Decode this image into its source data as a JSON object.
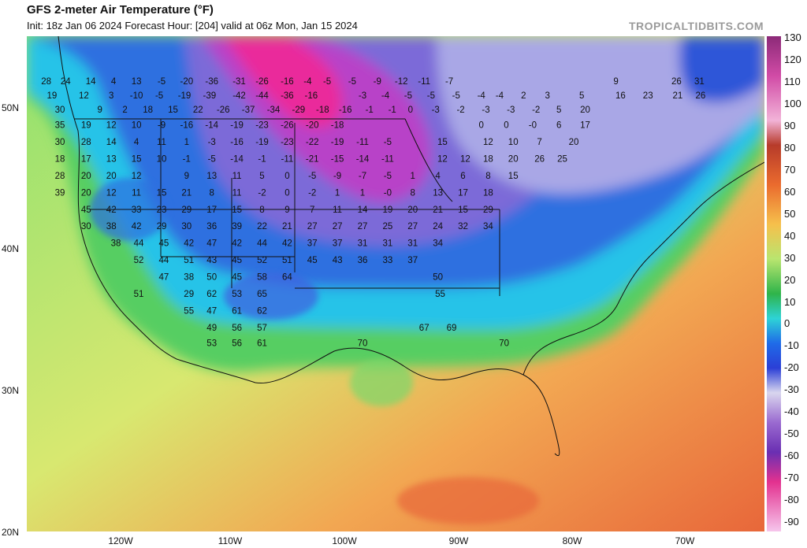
{
  "header": {
    "title": "GFS 2-meter Air Temperature (°F)",
    "subtitle": "Init: 18z Jan 06 2024   Forecast Hour: [204]   valid at 06z Mon, Jan 15 2024",
    "brand": "TROPICALTIDBITS.COM"
  },
  "axes": {
    "lat_labels": [
      "50N",
      "40N",
      "30N",
      "20N"
    ],
    "lon_labels": [
      "120W",
      "110W",
      "100W",
      "90W",
      "80W",
      "70W"
    ]
  },
  "colorbar": {
    "ticks": [
      "130",
      "120",
      "110",
      "100",
      "90",
      "80",
      "70",
      "60",
      "50",
      "40",
      "30",
      "20",
      "10",
      "0",
      "-10",
      "-20",
      "-30",
      "-40",
      "-50",
      "-60",
      "-70",
      "-80",
      "-90"
    ]
  },
  "temps": [
    {
      "v": "28",
      "lon": -126.5,
      "lat": 52.0
    },
    {
      "v": "24",
      "lon": -124.8,
      "lat": 52.0
    },
    {
      "v": "14",
      "lon": -122.6,
      "lat": 52.0
    },
    {
      "v": "4",
      "lon": -120.6,
      "lat": 52.0
    },
    {
      "v": "13",
      "lon": -118.6,
      "lat": 52.0
    },
    {
      "v": "-5",
      "lon": -116.4,
      "lat": 52.0
    },
    {
      "v": "-20",
      "lon": -114.2,
      "lat": 52.0
    },
    {
      "v": "-36",
      "lon": -112.0,
      "lat": 52.0
    },
    {
      "v": "-31",
      "lon": -109.6,
      "lat": 52.0
    },
    {
      "v": "-26",
      "lon": -107.6,
      "lat": 52.0
    },
    {
      "v": "-16",
      "lon": -105.4,
      "lat": 52.0
    },
    {
      "v": "-4",
      "lon": -103.6,
      "lat": 52.0
    },
    {
      "v": "-5",
      "lon": -101.9,
      "lat": 52.0
    },
    {
      "v": "-5",
      "lon": -99.7,
      "lat": 52.0
    },
    {
      "v": "-9",
      "lon": -97.5,
      "lat": 52.0
    },
    {
      "v": "-12",
      "lon": -95.4,
      "lat": 52.0
    },
    {
      "v": "-11",
      "lon": -93.4,
      "lat": 52.0
    },
    {
      "v": "-7",
      "lon": -91.2,
      "lat": 52.0
    },
    {
      "v": "9",
      "lon": -76.6,
      "lat": 52.0
    },
    {
      "v": "26",
      "lon": -71.3,
      "lat": 52.0
    },
    {
      "v": "31",
      "lon": -69.3,
      "lat": 52.0
    },
    {
      "v": "19",
      "lon": -126.0,
      "lat": 51.0
    },
    {
      "v": "12",
      "lon": -123.2,
      "lat": 51.0
    },
    {
      "v": "3",
      "lon": -120.8,
      "lat": 51.0
    },
    {
      "v": "-10",
      "lon": -118.6,
      "lat": 51.0
    },
    {
      "v": "-5",
      "lon": -116.6,
      "lat": 51.0
    },
    {
      "v": "-19",
      "lon": -114.4,
      "lat": 51.0
    },
    {
      "v": "-39",
      "lon": -112.2,
      "lat": 51.0
    },
    {
      "v": "-42",
      "lon": -109.6,
      "lat": 51.0
    },
    {
      "v": "-44",
      "lon": -107.6,
      "lat": 51.0
    },
    {
      "v": "-36",
      "lon": -105.4,
      "lat": 51.0
    },
    {
      "v": "-16",
      "lon": -103.3,
      "lat": 51.0
    },
    {
      "v": "-3",
      "lon": -98.8,
      "lat": 51.0
    },
    {
      "v": "-4",
      "lon": -96.8,
      "lat": 51.0
    },
    {
      "v": "-5",
      "lon": -94.8,
      "lat": 51.0
    },
    {
      "v": "-5",
      "lon": -92.8,
      "lat": 51.0
    },
    {
      "v": "-5",
      "lon": -90.6,
      "lat": 51.0
    },
    {
      "v": "-4",
      "lon": -88.4,
      "lat": 51.0
    },
    {
      "v": "-4",
      "lon": -86.8,
      "lat": 51.0
    },
    {
      "v": "2",
      "lon": -84.7,
      "lat": 51.0
    },
    {
      "v": "3",
      "lon": -82.6,
      "lat": 51.0
    },
    {
      "v": "5",
      "lon": -79.6,
      "lat": 51.0
    },
    {
      "v": "16",
      "lon": -76.2,
      "lat": 51.0
    },
    {
      "v": "23",
      "lon": -73.8,
      "lat": 51.0
    },
    {
      "v": "21",
      "lon": -71.2,
      "lat": 51.0
    },
    {
      "v": "26",
      "lon": -69.2,
      "lat": 51.0
    },
    {
      "v": "30",
      "lon": -125.3,
      "lat": 50.0
    },
    {
      "v": "9",
      "lon": -121.8,
      "lat": 50.0
    },
    {
      "v": "2",
      "lon": -119.6,
      "lat": 50.0
    },
    {
      "v": "18",
      "lon": -117.6,
      "lat": 50.0
    },
    {
      "v": "15",
      "lon": -115.4,
      "lat": 50.0
    },
    {
      "v": "22",
      "lon": -113.2,
      "lat": 50.0
    },
    {
      "v": "-26",
      "lon": -111.0,
      "lat": 50.0
    },
    {
      "v": "-37",
      "lon": -108.8,
      "lat": 50.0
    },
    {
      "v": "-34",
      "lon": -106.6,
      "lat": 50.0
    },
    {
      "v": "-29",
      "lon": -104.4,
      "lat": 50.0
    },
    {
      "v": "-18",
      "lon": -102.3,
      "lat": 50.0
    },
    {
      "v": "-16",
      "lon": -100.3,
      "lat": 50.0
    },
    {
      "v": "-1",
      "lon": -98.2,
      "lat": 50.0
    },
    {
      "v": "-1",
      "lon": -96.2,
      "lat": 50.0
    },
    {
      "v": "0",
      "lon": -94.6,
      "lat": 50.0
    },
    {
      "v": "-3",
      "lon": -92.4,
      "lat": 50.0
    },
    {
      "v": "-2",
      "lon": -90.2,
      "lat": 50.0
    },
    {
      "v": "-3",
      "lon": -88.0,
      "lat": 50.0
    },
    {
      "v": "-3",
      "lon": -85.8,
      "lat": 50.0
    },
    {
      "v": "-2",
      "lon": -83.6,
      "lat": 50.0
    },
    {
      "v": "5",
      "lon": -81.6,
      "lat": 50.0
    },
    {
      "v": "20",
      "lon": -79.3,
      "lat": 50.0
    },
    {
      "v": "35",
      "lon": -125.3,
      "lat": 48.9
    },
    {
      "v": "19",
      "lon": -123.0,
      "lat": 48.9
    },
    {
      "v": "12",
      "lon": -120.8,
      "lat": 48.9
    },
    {
      "v": "10",
      "lon": -118.6,
      "lat": 48.9
    },
    {
      "v": "-9",
      "lon": -116.4,
      "lat": 48.9
    },
    {
      "v": "-16",
      "lon": -114.2,
      "lat": 48.9
    },
    {
      "v": "-14",
      "lon": -112.0,
      "lat": 48.9
    },
    {
      "v": "-19",
      "lon": -109.8,
      "lat": 48.9
    },
    {
      "v": "-23",
      "lon": -107.6,
      "lat": 48.9
    },
    {
      "v": "-26",
      "lon": -105.4,
      "lat": 48.9
    },
    {
      "v": "-20",
      "lon": -103.2,
      "lat": 48.9
    },
    {
      "v": "-18",
      "lon": -101.0,
      "lat": 48.9
    },
    {
      "v": "0",
      "lon": -88.4,
      "lat": 48.9
    },
    {
      "v": "0",
      "lon": -86.2,
      "lat": 48.9
    },
    {
      "v": "-0",
      "lon": -83.9,
      "lat": 48.9
    },
    {
      "v": "6",
      "lon": -81.6,
      "lat": 48.9
    },
    {
      "v": "17",
      "lon": -79.3,
      "lat": 48.9
    },
    {
      "v": "30",
      "lon": -125.3,
      "lat": 47.7
    },
    {
      "v": "28",
      "lon": -123.0,
      "lat": 47.7
    },
    {
      "v": "14",
      "lon": -120.8,
      "lat": 47.7
    },
    {
      "v": "4",
      "lon": -118.6,
      "lat": 47.7
    },
    {
      "v": "11",
      "lon": -116.4,
      "lat": 47.7
    },
    {
      "v": "1",
      "lon": -114.2,
      "lat": 47.7
    },
    {
      "v": "-3",
      "lon": -112.0,
      "lat": 47.7
    },
    {
      "v": "-16",
      "lon": -109.8,
      "lat": 47.7
    },
    {
      "v": "-19",
      "lon": -107.6,
      "lat": 47.7
    },
    {
      "v": "-23",
      "lon": -105.4,
      "lat": 47.7
    },
    {
      "v": "-22",
      "lon": -103.2,
      "lat": 47.7
    },
    {
      "v": "-19",
      "lon": -101.0,
      "lat": 47.7
    },
    {
      "v": "-11",
      "lon": -98.8,
      "lat": 47.7
    },
    {
      "v": "-5",
      "lon": -96.6,
      "lat": 47.7
    },
    {
      "v": "15",
      "lon": -91.8,
      "lat": 47.7
    },
    {
      "v": "12",
      "lon": -87.8,
      "lat": 47.7
    },
    {
      "v": "10",
      "lon": -85.6,
      "lat": 47.7
    },
    {
      "v": "7",
      "lon": -83.3,
      "lat": 47.7
    },
    {
      "v": "20",
      "lon": -80.3,
      "lat": 47.7
    },
    {
      "v": "18",
      "lon": -125.3,
      "lat": 46.5
    },
    {
      "v": "17",
      "lon": -123.0,
      "lat": 46.5
    },
    {
      "v": "13",
      "lon": -120.8,
      "lat": 46.5
    },
    {
      "v": "15",
      "lon": -118.6,
      "lat": 46.5
    },
    {
      "v": "10",
      "lon": -116.4,
      "lat": 46.5
    },
    {
      "v": "-1",
      "lon": -114.2,
      "lat": 46.5
    },
    {
      "v": "-5",
      "lon": -112.0,
      "lat": 46.5
    },
    {
      "v": "-14",
      "lon": -109.8,
      "lat": 46.5
    },
    {
      "v": "-1",
      "lon": -107.6,
      "lat": 46.5
    },
    {
      "v": "-11",
      "lon": -105.4,
      "lat": 46.5
    },
    {
      "v": "-21",
      "lon": -103.2,
      "lat": 46.5
    },
    {
      "v": "-15",
      "lon": -101.0,
      "lat": 46.5
    },
    {
      "v": "-14",
      "lon": -98.8,
      "lat": 46.5
    },
    {
      "v": "-11",
      "lon": -96.6,
      "lat": 46.5
    },
    {
      "v": "12",
      "lon": -91.8,
      "lat": 46.5
    },
    {
      "v": "12",
      "lon": -89.8,
      "lat": 46.5
    },
    {
      "v": "18",
      "lon": -87.8,
      "lat": 46.5
    },
    {
      "v": "20",
      "lon": -85.6,
      "lat": 46.5
    },
    {
      "v": "26",
      "lon": -83.3,
      "lat": 46.5
    },
    {
      "v": "25",
      "lon": -81.3,
      "lat": 46.5
    },
    {
      "v": "28",
      "lon": -125.3,
      "lat": 45.3
    },
    {
      "v": "20",
      "lon": -123.0,
      "lat": 45.3
    },
    {
      "v": "20",
      "lon": -120.8,
      "lat": 45.3
    },
    {
      "v": "12",
      "lon": -118.6,
      "lat": 45.3
    },
    {
      "v": "9",
      "lon": -114.2,
      "lat": 45.3
    },
    {
      "v": "13",
      "lon": -112.0,
      "lat": 45.3
    },
    {
      "v": "11",
      "lon": -109.8,
      "lat": 45.3
    },
    {
      "v": "5",
      "lon": -107.6,
      "lat": 45.3
    },
    {
      "v": "0",
      "lon": -105.4,
      "lat": 45.3
    },
    {
      "v": "-5",
      "lon": -103.2,
      "lat": 45.3
    },
    {
      "v": "-9",
      "lon": -101.0,
      "lat": 45.3
    },
    {
      "v": "-7",
      "lon": -98.8,
      "lat": 45.3
    },
    {
      "v": "-5",
      "lon": -96.6,
      "lat": 45.3
    },
    {
      "v": "1",
      "lon": -94.4,
      "lat": 45.3
    },
    {
      "v": "4",
      "lon": -92.2,
      "lat": 45.3
    },
    {
      "v": "6",
      "lon": -90.0,
      "lat": 45.3
    },
    {
      "v": "8",
      "lon": -87.8,
      "lat": 45.3
    },
    {
      "v": "15",
      "lon": -85.6,
      "lat": 45.3
    },
    {
      "v": "39",
      "lon": -125.3,
      "lat": 44.1
    },
    {
      "v": "20",
      "lon": -123.0,
      "lat": 44.1
    },
    {
      "v": "12",
      "lon": -120.8,
      "lat": 44.1
    },
    {
      "v": "11",
      "lon": -118.6,
      "lat": 44.1
    },
    {
      "v": "15",
      "lon": -116.4,
      "lat": 44.1
    },
    {
      "v": "21",
      "lon": -114.2,
      "lat": 44.1
    },
    {
      "v": "8",
      "lon": -112.0,
      "lat": 44.1
    },
    {
      "v": "11",
      "lon": -109.8,
      "lat": 44.1
    },
    {
      "v": "-2",
      "lon": -107.6,
      "lat": 44.1
    },
    {
      "v": "0",
      "lon": -105.4,
      "lat": 44.1
    },
    {
      "v": "-2",
      "lon": -103.2,
      "lat": 44.1
    },
    {
      "v": "1",
      "lon": -101.0,
      "lat": 44.1
    },
    {
      "v": "1",
      "lon": -98.8,
      "lat": 44.1
    },
    {
      "v": "-0",
      "lon": -96.6,
      "lat": 44.1
    },
    {
      "v": "8",
      "lon": -94.4,
      "lat": 44.1
    },
    {
      "v": "13",
      "lon": -92.2,
      "lat": 44.1
    },
    {
      "v": "17",
      "lon": -90.0,
      "lat": 44.1
    },
    {
      "v": "18",
      "lon": -87.8,
      "lat": 44.1
    },
    {
      "v": "45",
      "lon": -123.0,
      "lat": 42.9
    },
    {
      "v": "42",
      "lon": -120.8,
      "lat": 42.9
    },
    {
      "v": "33",
      "lon": -118.6,
      "lat": 42.9
    },
    {
      "v": "23",
      "lon": -116.4,
      "lat": 42.9
    },
    {
      "v": "29",
      "lon": -114.2,
      "lat": 42.9
    },
    {
      "v": "17",
      "lon": -112.0,
      "lat": 42.9
    },
    {
      "v": "15",
      "lon": -109.8,
      "lat": 42.9
    },
    {
      "v": "8",
      "lon": -107.6,
      "lat": 42.9
    },
    {
      "v": "9",
      "lon": -105.4,
      "lat": 42.9
    },
    {
      "v": "7",
      "lon": -103.2,
      "lat": 42.9
    },
    {
      "v": "11",
      "lon": -101.0,
      "lat": 42.9
    },
    {
      "v": "14",
      "lon": -98.8,
      "lat": 42.9
    },
    {
      "v": "19",
      "lon": -96.6,
      "lat": 42.9
    },
    {
      "v": "20",
      "lon": -94.4,
      "lat": 42.9
    },
    {
      "v": "21",
      "lon": -92.2,
      "lat": 42.9
    },
    {
      "v": "15",
      "lon": -90.0,
      "lat": 42.9
    },
    {
      "v": "29",
      "lon": -87.8,
      "lat": 42.9
    },
    {
      "v": "30",
      "lon": -123.0,
      "lat": 41.7
    },
    {
      "v": "38",
      "lon": -120.8,
      "lat": 41.7
    },
    {
      "v": "42",
      "lon": -118.6,
      "lat": 41.7
    },
    {
      "v": "29",
      "lon": -116.4,
      "lat": 41.7
    },
    {
      "v": "30",
      "lon": -114.2,
      "lat": 41.7
    },
    {
      "v": "36",
      "lon": -112.0,
      "lat": 41.7
    },
    {
      "v": "39",
      "lon": -109.8,
      "lat": 41.7
    },
    {
      "v": "22",
      "lon": -107.6,
      "lat": 41.7
    },
    {
      "v": "21",
      "lon": -105.4,
      "lat": 41.7
    },
    {
      "v": "27",
      "lon": -103.2,
      "lat": 41.7
    },
    {
      "v": "27",
      "lon": -101.0,
      "lat": 41.7
    },
    {
      "v": "27",
      "lon": -98.8,
      "lat": 41.7
    },
    {
      "v": "25",
      "lon": -96.6,
      "lat": 41.7
    },
    {
      "v": "27",
      "lon": -94.4,
      "lat": 41.7
    },
    {
      "v": "24",
      "lon": -92.2,
      "lat": 41.7
    },
    {
      "v": "32",
      "lon": -90.0,
      "lat": 41.7
    },
    {
      "v": "34",
      "lon": -87.8,
      "lat": 41.7
    },
    {
      "v": "38",
      "lon": -120.4,
      "lat": 40.5
    },
    {
      "v": "44",
      "lon": -118.4,
      "lat": 40.5
    },
    {
      "v": "45",
      "lon": -116.2,
      "lat": 40.5
    },
    {
      "v": "42",
      "lon": -114.0,
      "lat": 40.5
    },
    {
      "v": "47",
      "lon": -112.0,
      "lat": 40.5
    },
    {
      "v": "42",
      "lon": -109.8,
      "lat": 40.5
    },
    {
      "v": "44",
      "lon": -107.6,
      "lat": 40.5
    },
    {
      "v": "42",
      "lon": -105.4,
      "lat": 40.5
    },
    {
      "v": "37",
      "lon": -103.2,
      "lat": 40.5
    },
    {
      "v": "37",
      "lon": -101.0,
      "lat": 40.5
    },
    {
      "v": "31",
      "lon": -98.8,
      "lat": 40.5
    },
    {
      "v": "31",
      "lon": -96.6,
      "lat": 40.5
    },
    {
      "v": "31",
      "lon": -94.4,
      "lat": 40.5
    },
    {
      "v": "34",
      "lon": -92.2,
      "lat": 40.5
    },
    {
      "v": "52",
      "lon": -118.4,
      "lat": 39.3
    },
    {
      "v": "44",
      "lon": -116.2,
      "lat": 39.3
    },
    {
      "v": "51",
      "lon": -114.0,
      "lat": 39.3
    },
    {
      "v": "43",
      "lon": -112.0,
      "lat": 39.3
    },
    {
      "v": "45",
      "lon": -109.8,
      "lat": 39.3
    },
    {
      "v": "52",
      "lon": -107.6,
      "lat": 39.3
    },
    {
      "v": "51",
      "lon": -105.4,
      "lat": 39.3
    },
    {
      "v": "45",
      "lon": -103.2,
      "lat": 39.3
    },
    {
      "v": "43",
      "lon": -101.0,
      "lat": 39.3
    },
    {
      "v": "36",
      "lon": -98.8,
      "lat": 39.3
    },
    {
      "v": "33",
      "lon": -96.6,
      "lat": 39.3
    },
    {
      "v": "37",
      "lon": -94.4,
      "lat": 39.3
    },
    {
      "v": "47",
      "lon": -116.2,
      "lat": 38.1
    },
    {
      "v": "38",
      "lon": -114.0,
      "lat": 38.1
    },
    {
      "v": "50",
      "lon": -112.0,
      "lat": 38.1
    },
    {
      "v": "45",
      "lon": -109.8,
      "lat": 38.1
    },
    {
      "v": "58",
      "lon": -107.6,
      "lat": 38.1
    },
    {
      "v": "64",
      "lon": -105.4,
      "lat": 38.1
    },
    {
      "v": "50",
      "lon": -92.2,
      "lat": 38.1
    },
    {
      "v": "51",
      "lon": -118.4,
      "lat": 36.9
    },
    {
      "v": "29",
      "lon": -114.0,
      "lat": 36.9
    },
    {
      "v": "62",
      "lon": -112.0,
      "lat": 36.9
    },
    {
      "v": "53",
      "lon": -109.8,
      "lat": 36.9
    },
    {
      "v": "65",
      "lon": -107.6,
      "lat": 36.9
    },
    {
      "v": "55",
      "lon": -92.0,
      "lat": 36.9
    },
    {
      "v": "55",
      "lon": -114.0,
      "lat": 35.7
    },
    {
      "v": "47",
      "lon": -112.0,
      "lat": 35.7
    },
    {
      "v": "61",
      "lon": -109.8,
      "lat": 35.7
    },
    {
      "v": "62",
      "lon": -107.6,
      "lat": 35.7
    },
    {
      "v": "49",
      "lon": -112.0,
      "lat": 34.5
    },
    {
      "v": "56",
      "lon": -109.8,
      "lat": 34.5
    },
    {
      "v": "57",
      "lon": -107.6,
      "lat": 34.5
    },
    {
      "v": "67",
      "lon": -93.4,
      "lat": 34.5
    },
    {
      "v": "69",
      "lon": -91.0,
      "lat": 34.5
    },
    {
      "v": "53",
      "lon": -112.0,
      "lat": 33.4
    },
    {
      "v": "56",
      "lon": -109.8,
      "lat": 33.4
    },
    {
      "v": "61",
      "lon": -107.6,
      "lat": 33.4
    },
    {
      "v": "70",
      "lon": -98.8,
      "lat": 33.4
    },
    {
      "v": "70",
      "lon": -86.4,
      "lat": 33.4
    }
  ]
}
